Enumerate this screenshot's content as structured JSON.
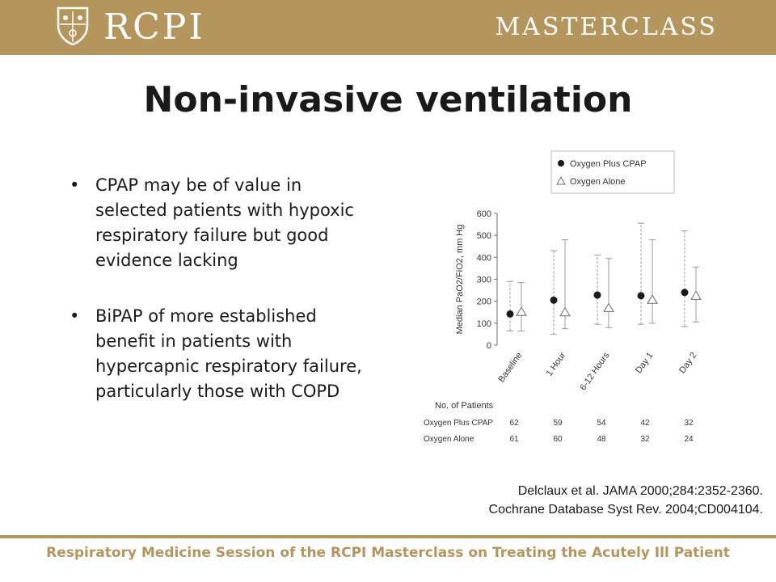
{
  "header": {
    "logo_text": "RCPI",
    "masterclass_text": "MASTERCLASS",
    "colors": {
      "gold": "#b4965c"
    }
  },
  "slide": {
    "title": "Non-invasive ventilation",
    "bullets": [
      "CPAP may be of value in selected patients with hypoxic respiratory failure but good evidence lacking",
      "BiPAP of more established benefit in patients with hypercapnic respiratory failure, particularly those with COPD"
    ]
  },
  "references": [
    "Delclaux et al. JAMA 2000;284:2352-2360.",
    "Cochrane Database Syst Rev. 2004;CD004104."
  ],
  "footer": {
    "text": "Respiratory Medicine Session of the RCPI Masterclass on Treating the Acutely Ill Patient"
  },
  "chart_data": {
    "type": "scatter",
    "title": "",
    "xlabel": "",
    "ylabel": "Median PaO2/FiO2, mm Hg",
    "categories": [
      "Baseline",
      "1 Hour",
      "6-12 Hours",
      "Day 1",
      "Day 2"
    ],
    "ylim": [
      0,
      600
    ],
    "yticks": [
      0,
      100,
      200,
      300,
      400,
      500,
      600
    ],
    "legend_position": "top-right",
    "series": [
      {
        "name": "Oxygen Plus CPAP",
        "marker": "filled-circle",
        "values": [
          142,
          205,
          228,
          225,
          240
        ],
        "error_low": [
          65,
          50,
          95,
          95,
          85
        ],
        "error_high": [
          290,
          430,
          410,
          555,
          520
        ]
      },
      {
        "name": "Oxygen Alone",
        "marker": "open-triangle",
        "values": [
          150,
          148,
          168,
          205,
          223
        ],
        "error_low": [
          65,
          75,
          80,
          100,
          105
        ],
        "error_high": [
          285,
          480,
          395,
          480,
          355
        ]
      }
    ],
    "patients_table": {
      "header": "No. of Patients",
      "rows": [
        {
          "label": "Oxygen Plus CPAP",
          "values": [
            "62",
            "59",
            "54",
            "42",
            "32"
          ]
        },
        {
          "label": "Oxygen Alone",
          "values": [
            "61",
            "60",
            "48",
            "32",
            "24"
          ]
        }
      ]
    }
  }
}
